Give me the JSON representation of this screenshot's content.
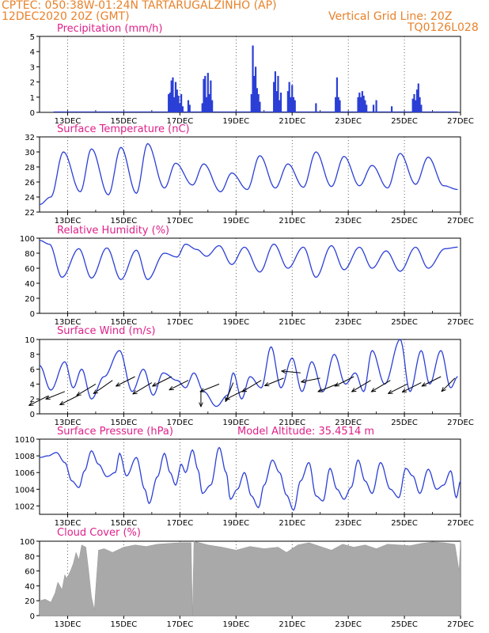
{
  "header": {
    "left1": "CPTEC:   050:38W-01:24N   TARTARUGALZINHO (AP)",
    "left2": "12DEC2020 20Z (GMT)",
    "right1": "Vertical Grid Line: 20Z",
    "right2": "TQ0126L028",
    "accent": "#e8822a"
  },
  "colors": {
    "title": "#e0208a",
    "line": "#2b3fd6",
    "bar": "#2b3fd6",
    "cloud": "#a9a9a9",
    "frame": "#000000"
  },
  "x_ticks": [
    "13DEC",
    "15DEC",
    "17DEC",
    "19DEC",
    "21DEC",
    "23DEC",
    "25DEC",
    "27DEC"
  ],
  "chart_data": [
    {
      "id": "precip",
      "type": "bar",
      "title": "Precipitation (mm/h)",
      "ylim": [
        0,
        5
      ],
      "yticks": [
        "0",
        "1",
        "2",
        "3",
        "4",
        "5"
      ],
      "x_days": [
        16.6,
        16.65,
        16.7,
        16.75,
        16.8,
        16.85,
        16.9,
        16.95,
        17.0,
        17.05,
        17.1,
        17.3,
        17.35,
        17.8,
        17.85,
        17.9,
        17.95,
        18.0,
        18.05,
        18.1,
        18.15,
        19.55,
        19.6,
        19.65,
        19.7,
        19.75,
        19.8,
        19.85,
        20.35,
        20.4,
        20.45,
        20.5,
        20.55,
        20.6,
        20.85,
        20.9,
        20.95,
        21.0,
        21.05,
        21.1,
        21.85,
        22.55,
        22.6,
        22.65,
        22.7,
        23.35,
        23.4,
        23.45,
        23.5,
        23.55,
        23.6,
        23.65,
        23.9,
        24.0,
        24.55,
        25.3,
        25.35,
        25.4,
        25.45,
        25.5,
        25.55,
        25.6
      ],
      "values": [
        1.2,
        1.3,
        2.1,
        2.3,
        1.0,
        2.0,
        1.5,
        1.1,
        0.6,
        1.2,
        0.4,
        0.8,
        0.5,
        0.6,
        2.2,
        2.4,
        1.0,
        2.6,
        1.2,
        2.1,
        0.8,
        1.2,
        4.4,
        2.4,
        3.0,
        1.6,
        1.2,
        0.7,
        2.0,
        2.7,
        1.4,
        2.4,
        0.8,
        1.3,
        1.4,
        2.0,
        1.0,
        1.8,
        1.0,
        0.8,
        0.6,
        1.0,
        2.3,
        1.0,
        0.8,
        1.0,
        1.3,
        1.0,
        1.4,
        1.1,
        0.8,
        0.5,
        0.5,
        0.8,
        0.4,
        0.9,
        1.2,
        0.8,
        1.5,
        1.9,
        1.0,
        0.5
      ]
    },
    {
      "id": "temp",
      "type": "line",
      "title": "Surface Temperature (nC)",
      "ylim": [
        22,
        32
      ],
      "yticks": [
        "22",
        "24",
        "26",
        "28",
        "30",
        "32"
      ],
      "peaks": [
        [
          12.0,
          23.0
        ],
        [
          12.4,
          24.0
        ],
        [
          12.85,
          30.0
        ],
        [
          13.45,
          24.7
        ],
        [
          13.85,
          30.4
        ],
        [
          14.45,
          24.3
        ],
        [
          14.9,
          30.6
        ],
        [
          15.45,
          24.5
        ],
        [
          15.85,
          31.1
        ],
        [
          16.45,
          25.2
        ],
        [
          16.85,
          28.5
        ],
        [
          17.45,
          25.6
        ],
        [
          17.85,
          28.4
        ],
        [
          18.45,
          24.7
        ],
        [
          18.85,
          27.2
        ],
        [
          19.4,
          25.0
        ],
        [
          19.85,
          29.5
        ],
        [
          20.4,
          25.2
        ],
        [
          20.85,
          28.4
        ],
        [
          21.4,
          25.3
        ],
        [
          21.85,
          30.0
        ],
        [
          22.4,
          25.4
        ],
        [
          22.85,
          29.4
        ],
        [
          23.4,
          25.5
        ],
        [
          23.85,
          28.2
        ],
        [
          24.4,
          25.2
        ],
        [
          24.85,
          29.8
        ],
        [
          25.4,
          25.7
        ],
        [
          25.85,
          29.3
        ],
        [
          26.4,
          25.5
        ],
        [
          26.9,
          25.0
        ]
      ]
    },
    {
      "id": "rh",
      "type": "line",
      "title": "Relative Humidity (%)",
      "ylim": [
        0,
        100
      ],
      "yticks": [
        "0",
        "20",
        "40",
        "60",
        "80",
        "100"
      ],
      "peaks": [
        [
          12.0,
          97
        ],
        [
          12.35,
          92
        ],
        [
          12.8,
          48
        ],
        [
          13.4,
          86
        ],
        [
          13.85,
          47
        ],
        [
          14.4,
          87
        ],
        [
          14.9,
          45
        ],
        [
          15.45,
          84
        ],
        [
          15.85,
          45
        ],
        [
          16.45,
          80
        ],
        [
          16.9,
          75
        ],
        [
          17.2,
          92
        ],
        [
          17.6,
          85
        ],
        [
          17.95,
          76
        ],
        [
          18.4,
          90
        ],
        [
          18.85,
          65
        ],
        [
          19.3,
          88
        ],
        [
          19.85,
          55
        ],
        [
          20.35,
          92
        ],
        [
          20.85,
          60
        ],
        [
          21.4,
          88
        ],
        [
          21.85,
          48
        ],
        [
          22.4,
          90
        ],
        [
          22.85,
          58
        ],
        [
          23.4,
          88
        ],
        [
          23.85,
          60
        ],
        [
          24.35,
          83
        ],
        [
          24.85,
          56
        ],
        [
          25.4,
          88
        ],
        [
          25.85,
          60
        ],
        [
          26.45,
          86
        ],
        [
          26.9,
          88
        ]
      ]
    },
    {
      "id": "wind",
      "type": "line",
      "title": "Surface Wind (m/s)",
      "ylim": [
        0,
        10
      ],
      "yticks": [
        "0",
        "2",
        "4",
        "6",
        "8",
        "10"
      ],
      "peaks": [
        [
          12.0,
          6.5
        ],
        [
          12.4,
          3.2
        ],
        [
          12.9,
          7.0
        ],
        [
          13.2,
          3.5
        ],
        [
          13.5,
          6.0
        ],
        [
          13.85,
          2.0
        ],
        [
          14.3,
          5.0
        ],
        [
          14.85,
          8.5
        ],
        [
          15.3,
          3.0
        ],
        [
          15.7,
          6.0
        ],
        [
          16.05,
          2.5
        ],
        [
          16.4,
          5.5
        ],
        [
          16.9,
          4.5
        ],
        [
          17.2,
          3.5
        ],
        [
          17.5,
          5.5
        ],
        [
          17.85,
          3.0
        ],
        [
          18.3,
          1.0
        ],
        [
          18.7,
          2.5
        ],
        [
          18.9,
          5.5
        ],
        [
          19.2,
          2.0
        ],
        [
          19.5,
          5.0
        ],
        [
          19.9,
          3.5
        ],
        [
          20.25,
          9.0
        ],
        [
          20.6,
          3.5
        ],
        [
          21.0,
          7.5
        ],
        [
          21.35,
          3.0
        ],
        [
          21.7,
          7.0
        ],
        [
          22.1,
          3.0
        ],
        [
          22.5,
          8.0
        ],
        [
          22.9,
          4.0
        ],
        [
          23.25,
          5.5
        ],
        [
          23.55,
          3.0
        ],
        [
          23.85,
          8.5
        ],
        [
          24.3,
          4.0
        ],
        [
          24.85,
          10.0
        ],
        [
          25.2,
          3.0
        ],
        [
          25.6,
          8.5
        ],
        [
          25.9,
          4.0
        ],
        [
          26.3,
          8.5
        ],
        [
          26.65,
          3.5
        ],
        [
          26.9,
          5.0
        ]
      ],
      "vectors": [
        [
          12.3,
          2.4,
          -1.0,
          -0.5
        ],
        [
          12.9,
          3.0,
          -1.0,
          -0.4
        ],
        [
          13.4,
          2.5,
          -1.0,
          -0.5
        ],
        [
          14.0,
          4.0,
          -1.0,
          -0.6
        ],
        [
          14.6,
          4.5,
          -1.0,
          -0.7
        ],
        [
          15.4,
          5.0,
          -1.0,
          -0.5
        ],
        [
          16.0,
          4.2,
          -1.0,
          -0.6
        ],
        [
          16.7,
          5.0,
          -1.0,
          -0.5
        ],
        [
          17.3,
          4.5,
          -1.0,
          -0.5
        ],
        [
          17.75,
          3.0,
          0.0,
          -0.8
        ],
        [
          18.4,
          4.0,
          -1.0,
          -0.4
        ],
        [
          18.9,
          4.2,
          -0.4,
          -1.0
        ],
        [
          19.3,
          3.2,
          -1.0,
          -0.5
        ],
        [
          19.9,
          4.5,
          -1.0,
          -0.6
        ],
        [
          20.7,
          4.8,
          -1.0,
          -0.4
        ],
        [
          21.3,
          5.5,
          -1.0,
          0.1
        ],
        [
          22.0,
          4.8,
          -1.0,
          -0.2
        ],
        [
          22.6,
          4.0,
          -1.0,
          -0.4
        ],
        [
          23.2,
          5.0,
          -1.0,
          -0.5
        ],
        [
          23.8,
          4.5,
          -1.0,
          -0.6
        ],
        [
          24.5,
          4.5,
          -1.0,
          -0.6
        ],
        [
          25.1,
          4.0,
          -1.0,
          -0.5
        ],
        [
          25.6,
          4.2,
          -1.0,
          -0.5
        ],
        [
          26.3,
          5.0,
          -1.0,
          -0.5
        ],
        [
          26.8,
          4.8,
          -0.7,
          -0.7
        ]
      ]
    },
    {
      "id": "pres",
      "type": "line",
      "title": "Surface Pressure (hPa)",
      "subtitle": "Model Altitude: 35.4514 m",
      "ylim": [
        1001,
        1010
      ],
      "yticks": [
        "1002",
        "1004",
        "1006",
        "1008",
        "1010"
      ],
      "peaks": [
        [
          12.0,
          1007.8
        ],
        [
          12.3,
          1008.0
        ],
        [
          12.6,
          1008.4
        ],
        [
          12.9,
          1007.2
        ],
        [
          13.15,
          1005.0
        ],
        [
          13.4,
          1004.2
        ],
        [
          13.6,
          1006.2
        ],
        [
          13.85,
          1008.6
        ],
        [
          14.1,
          1007.0
        ],
        [
          14.4,
          1005.5
        ],
        [
          14.7,
          1006.0
        ],
        [
          14.85,
          1008.3
        ],
        [
          15.1,
          1005.6
        ],
        [
          15.45,
          1007.8
        ],
        [
          15.75,
          1004.0
        ],
        [
          15.9,
          1002.3
        ],
        [
          16.2,
          1005.5
        ],
        [
          16.45,
          1008.3
        ],
        [
          16.65,
          1006.0
        ],
        [
          16.85,
          1004.5
        ],
        [
          17.05,
          1007.0
        ],
        [
          17.2,
          1006.0
        ],
        [
          17.45,
          1008.7
        ],
        [
          17.65,
          1006.3
        ],
        [
          17.8,
          1003.5
        ],
        [
          18.1,
          1004.5
        ],
        [
          18.4,
          1009.0
        ],
        [
          18.65,
          1006.0
        ],
        [
          18.8,
          1002.8
        ],
        [
          19.05,
          1004.0
        ],
        [
          19.3,
          1006.0
        ],
        [
          19.55,
          1003.2
        ],
        [
          19.8,
          1001.8
        ],
        [
          20.0,
          1004.5
        ],
        [
          20.3,
          1007.5
        ],
        [
          20.55,
          1006.0
        ],
        [
          20.8,
          1003.3
        ],
        [
          21.05,
          1001.5
        ],
        [
          21.3,
          1005.0
        ],
        [
          21.6,
          1007.2
        ],
        [
          21.85,
          1003.2
        ],
        [
          22.1,
          1002.6
        ],
        [
          22.35,
          1006.5
        ],
        [
          22.6,
          1004.0
        ],
        [
          22.85,
          1002.8
        ],
        [
          23.1,
          1004.2
        ],
        [
          23.35,
          1007.5
        ],
        [
          23.6,
          1005.0
        ],
        [
          23.85,
          1003.5
        ],
        [
          24.15,
          1007.2
        ],
        [
          24.5,
          1004.0
        ],
        [
          24.8,
          1003.0
        ],
        [
          25.05,
          1006.5
        ],
        [
          25.3,
          1005.6
        ],
        [
          25.55,
          1003.5
        ],
        [
          25.85,
          1006.4
        ],
        [
          26.15,
          1004.0
        ],
        [
          26.4,
          1004.5
        ],
        [
          26.65,
          1006.2
        ],
        [
          26.85,
          1003.0
        ],
        [
          27.0,
          1005.0
        ]
      ]
    },
    {
      "id": "cloud",
      "type": "area",
      "title": "Cloud Cover (%)",
      "ylim": [
        0,
        100
      ],
      "yticks": [
        "0",
        "20",
        "40",
        "60",
        "80",
        "100"
      ],
      "x_days": [
        12.0,
        12.2,
        12.4,
        12.55,
        12.65,
        12.8,
        12.9,
        12.97,
        13.1,
        13.2,
        13.3,
        13.4,
        13.5,
        13.65,
        13.75,
        13.85,
        13.95,
        14.0,
        14.1,
        14.3,
        14.6,
        15.0,
        15.4,
        15.8,
        16.2,
        16.6,
        17.0,
        17.4,
        17.45,
        17.5,
        18.0,
        18.5,
        19.0,
        19.5,
        20.0,
        20.5,
        20.8,
        21.2,
        21.6,
        22.0,
        22.4,
        22.8,
        23.2,
        23.6,
        24.0,
        24.4,
        24.8,
        25.2,
        25.6,
        26.0,
        26.4,
        26.8,
        26.95,
        27.0
      ],
      "values": [
        20,
        22,
        18,
        30,
        45,
        35,
        55,
        50,
        60,
        70,
        85,
        75,
        95,
        92,
        60,
        25,
        8,
        35,
        88,
        90,
        85,
        92,
        95,
        93,
        96,
        97,
        98,
        98,
        0,
        100,
        95,
        92,
        88,
        93,
        90,
        92,
        85,
        95,
        98,
        93,
        88,
        96,
        92,
        95,
        90,
        96,
        95,
        94,
        97,
        99,
        98,
        96,
        60,
        100
      ]
    }
  ]
}
